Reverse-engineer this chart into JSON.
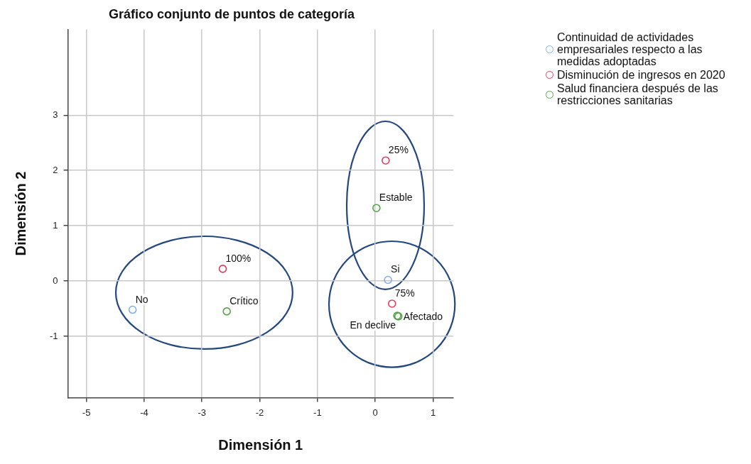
{
  "chart_data": {
    "type": "scatter",
    "title": "Gráfico conjunto de puntos de categoría",
    "xlabel": "Dimensión 1",
    "ylabel": "Dimensión 2",
    "xlim": [
      -5.32,
      1.35
    ],
    "xticks": [
      -5,
      -4,
      -3,
      -2,
      -1,
      0,
      1
    ],
    "ylim": [
      -2.11,
      4.55
    ],
    "yticks": [
      -1,
      0,
      1,
      2,
      3
    ],
    "grid": true,
    "legend": "top right",
    "marker": "circle",
    "series": [
      {
        "name": "Continuidad de actividades empresariales respecto a las medidas adoptadas",
        "color": "#7fb0ee",
        "x": [
          -4.2,
          0.22
        ],
        "values": [
          -0.52,
          0.02
        ]
      },
      {
        "name": "Disminución de ingresos en 2020",
        "color": "#e6395c",
        "x": [
          -2.64,
          0.18,
          0.29
        ],
        "values": [
          0.22,
          2.18,
          -0.41
        ]
      },
      {
        "name": "Salud financiera después de las restricciones sanitarias",
        "color": "#53a447",
        "x": [
          -2.57,
          0.02,
          0.4,
          0.38
        ],
        "values": [
          -0.55,
          1.32,
          -0.64,
          -0.63
        ]
      }
    ],
    "annotations": [
      {
        "text": "No",
        "x": -4.2,
        "y": -0.52
      },
      {
        "text": "Si",
        "x": 0.22,
        "y": 0.02
      },
      {
        "text": "100%",
        "x": -2.64,
        "y": 0.22
      },
      {
        "text": "25%",
        "x": 0.18,
        "y": 2.18
      },
      {
        "text": "75%",
        "x": 0.29,
        "y": -0.41
      },
      {
        "text": "Crítico",
        "x": -2.57,
        "y": -0.55
      },
      {
        "text": "Estable",
        "x": 0.02,
        "y": 1.32
      },
      {
        "text": "Afectado",
        "x": 0.4,
        "y": -0.64
      },
      {
        "text": "En declive",
        "x": 0.38,
        "y": -0.63
      }
    ]
  }
}
